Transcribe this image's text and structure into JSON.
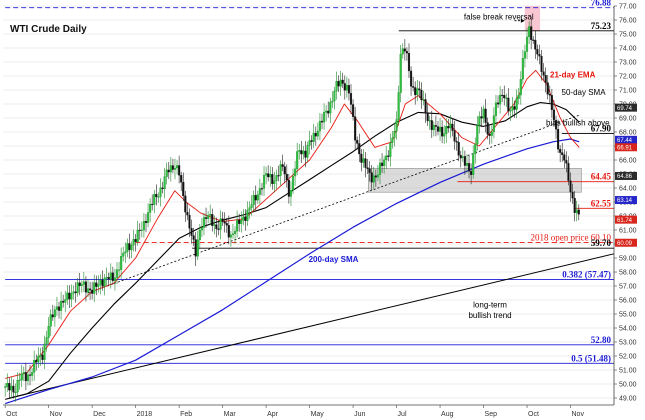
{
  "chart_data": {
    "type": "candlestick",
    "title": "WTI Crude Daily",
    "ylim": [
      48.5,
      77.0
    ],
    "y_ticks": [
      49.0,
      50.0,
      51.0,
      52.0,
      53.0,
      54.0,
      55.0,
      56.0,
      57.0,
      58.0,
      59.0,
      60.0,
      61.0,
      62.0,
      63.0,
      64.0,
      65.0,
      66.0,
      67.0,
      68.0,
      69.0,
      70.0,
      71.0,
      72.0,
      73.0,
      74.0,
      75.0,
      76.0,
      77.0
    ],
    "x_ticks": [
      {
        "label": "Oct",
        "x": 0.0
      },
      {
        "label": "Nov",
        "x": 1.0
      },
      {
        "label": "Dec",
        "x": 2.0
      },
      {
        "label": "2018",
        "x": 3.0
      },
      {
        "label": "Feb",
        "x": 4.0
      },
      {
        "label": "Mar",
        "x": 5.0
      },
      {
        "label": "Apr",
        "x": 6.0
      },
      {
        "label": "May",
        "x": 7.0
      },
      {
        "label": "Jun",
        "x": 8.0
      },
      {
        "label": "Jul",
        "x": 9.0
      },
      {
        "label": "Aug",
        "x": 10.0
      },
      {
        "label": "Sep",
        "x": 11.0
      },
      {
        "label": "Oct",
        "x": 12.0
      },
      {
        "label": "Nov",
        "x": 13.0
      }
    ],
    "x_range": [
      -0.05,
      14.0
    ],
    "close_path": [
      [
        0.0,
        49.8
      ],
      [
        0.2,
        49.5
      ],
      [
        0.35,
        50.6
      ],
      [
        0.5,
        50.4
      ],
      [
        0.7,
        51.6
      ],
      [
        0.85,
        52.0
      ],
      [
        1.0,
        54.2
      ],
      [
        1.2,
        55.6
      ],
      [
        1.4,
        56.0
      ],
      [
        1.6,
        56.8
      ],
      [
        1.8,
        57.1
      ],
      [
        2.0,
        56.6
      ],
      [
        2.2,
        57.4
      ],
      [
        2.5,
        57.6
      ],
      [
        2.8,
        59.8
      ],
      [
        3.0,
        60.3
      ],
      [
        3.2,
        61.6
      ],
      [
        3.45,
        63.4
      ],
      [
        3.6,
        64.0
      ],
      [
        3.75,
        65.3
      ],
      [
        3.9,
        65.7
      ],
      [
        4.0,
        65.0
      ],
      [
        4.1,
        63.2
      ],
      [
        4.25,
        61.2
      ],
      [
        4.38,
        59.2
      ],
      [
        4.5,
        61.5
      ],
      [
        4.65,
        62.0
      ],
      [
        4.85,
        61.2
      ],
      [
        5.0,
        61.6
      ],
      [
        5.2,
        60.6
      ],
      [
        5.4,
        61.6
      ],
      [
        5.6,
        62.4
      ],
      [
        5.8,
        63.6
      ],
      [
        6.0,
        64.9
      ],
      [
        6.2,
        64.6
      ],
      [
        6.4,
        65.6
      ],
      [
        6.55,
        63.4
      ],
      [
        6.75,
        66.9
      ],
      [
        6.9,
        66.4
      ],
      [
        7.05,
        67.5
      ],
      [
        7.25,
        68.6
      ],
      [
        7.45,
        69.8
      ],
      [
        7.6,
        71.2
      ],
      [
        7.75,
        71.6
      ],
      [
        7.9,
        71.0
      ],
      [
        8.05,
        67.6
      ],
      [
        8.2,
        66.0
      ],
      [
        8.4,
        64.8
      ],
      [
        8.55,
        64.9
      ],
      [
        8.75,
        66.2
      ],
      [
        8.85,
        67.0
      ],
      [
        9.0,
        68.5
      ],
      [
        9.1,
        73.9
      ],
      [
        9.2,
        74.1
      ],
      [
        9.35,
        70.9
      ],
      [
        9.5,
        71.2
      ],
      [
        9.7,
        69.0
      ],
      [
        9.9,
        68.2
      ],
      [
        10.05,
        67.9
      ],
      [
        10.2,
        68.6
      ],
      [
        10.45,
        66.5
      ],
      [
        10.7,
        64.9
      ],
      [
        10.85,
        68.4
      ],
      [
        11.0,
        69.4
      ],
      [
        11.15,
        67.5
      ],
      [
        11.3,
        70.0
      ],
      [
        11.45,
        71.0
      ],
      [
        11.6,
        69.2
      ],
      [
        11.8,
        70.6
      ],
      [
        11.95,
        73.8
      ],
      [
        12.05,
        75.6
      ],
      [
        12.15,
        74.3
      ],
      [
        12.3,
        72.9
      ],
      [
        12.45,
        71.4
      ],
      [
        12.6,
        69.1
      ],
      [
        12.75,
        66.6
      ],
      [
        12.85,
        66.2
      ],
      [
        13.0,
        63.8
      ],
      [
        13.1,
        62.6
      ],
      [
        13.2,
        61.9
      ]
    ],
    "ema21": [
      [
        0.0,
        50.4
      ],
      [
        0.5,
        50.8
      ],
      [
        1.0,
        52.8
      ],
      [
        1.5,
        55.2
      ],
      [
        2.0,
        56.6
      ],
      [
        2.5,
        57.2
      ],
      [
        3.0,
        59.0
      ],
      [
        3.5,
        61.8
      ],
      [
        3.9,
        63.8
      ],
      [
        4.2,
        62.9
      ],
      [
        4.5,
        62.2
      ],
      [
        5.0,
        61.6
      ],
      [
        5.5,
        61.8
      ],
      [
        6.0,
        63.2
      ],
      [
        6.5,
        64.6
      ],
      [
        7.0,
        66.0
      ],
      [
        7.5,
        68.3
      ],
      [
        7.8,
        70.0
      ],
      [
        8.1,
        68.8
      ],
      [
        8.5,
        66.9
      ],
      [
        8.9,
        67.3
      ],
      [
        9.2,
        70.0
      ],
      [
        9.5,
        70.6
      ],
      [
        10.0,
        69.3
      ],
      [
        10.5,
        67.6
      ],
      [
        10.9,
        67.0
      ],
      [
        11.3,
        68.5
      ],
      [
        11.7,
        70.0
      ],
      [
        12.0,
        71.8
      ],
      [
        12.2,
        72.4
      ],
      [
        12.45,
        71.4
      ],
      [
        12.75,
        69.1
      ],
      [
        13.0,
        67.6
      ],
      [
        13.2,
        66.9
      ]
    ],
    "sma50": [
      [
        0.0,
        48.9
      ],
      [
        0.5,
        49.3
      ],
      [
        1.0,
        50.2
      ],
      [
        1.5,
        52.2
      ],
      [
        2.0,
        54.0
      ],
      [
        2.5,
        55.7
      ],
      [
        3.0,
        57.2
      ],
      [
        3.5,
        58.8
      ],
      [
        4.0,
        60.4
      ],
      [
        4.5,
        61.2
      ],
      [
        5.0,
        61.7
      ],
      [
        5.5,
        62.1
      ],
      [
        6.0,
        62.6
      ],
      [
        6.5,
        63.6
      ],
      [
        7.0,
        64.6
      ],
      [
        7.5,
        65.6
      ],
      [
        8.0,
        66.6
      ],
      [
        8.5,
        67.7
      ],
      [
        9.0,
        68.7
      ],
      [
        9.5,
        69.4
      ],
      [
        10.0,
        69.3
      ],
      [
        10.5,
        68.7
      ],
      [
        11.0,
        68.4
      ],
      [
        11.5,
        68.8
      ],
      [
        12.0,
        69.8
      ],
      [
        12.3,
        70.1
      ],
      [
        12.6,
        70.0
      ],
      [
        12.9,
        69.6
      ],
      [
        13.2,
        68.7
      ]
    ],
    "sma200": [
      [
        0.0,
        48.6
      ],
      [
        1.0,
        49.6
      ],
      [
        2.0,
        50.5
      ],
      [
        3.0,
        51.7
      ],
      [
        4.0,
        53.5
      ],
      [
        5.0,
        55.3
      ],
      [
        6.0,
        57.3
      ],
      [
        7.0,
        59.3
      ],
      [
        8.0,
        61.2
      ],
      [
        9.0,
        62.9
      ],
      [
        10.0,
        64.4
      ],
      [
        11.0,
        65.7
      ],
      [
        12.0,
        66.8
      ],
      [
        12.6,
        67.3
      ],
      [
        13.0,
        67.5
      ],
      [
        13.2,
        67.3
      ]
    ],
    "bands": [
      {
        "y1": 63.7,
        "y2": 65.4,
        "x1": 8.35,
        "x2": 13.25,
        "color": "#bdbdbd"
      }
    ],
    "false_break_zone": {
      "x1": 11.95,
      "x2": 12.3,
      "y1": 75.2,
      "y2": 77.0
    },
    "levels": [
      {
        "value": 76.88,
        "label": "76.88",
        "color": "#1a1ad6",
        "style": "dashed",
        "x1": 0.0,
        "x2": 14.0
      },
      {
        "value": 75.23,
        "label": "75.23",
        "color": "#000000",
        "style": "solid",
        "x1": 9.05,
        "x2": 14.0
      },
      {
        "value": 67.9,
        "label": "67.90",
        "color": "#000000",
        "style": "solid",
        "x1": 12.8,
        "x2": 14.0
      },
      {
        "value": 64.45,
        "label": "64.45",
        "color": "#e8170f",
        "style": "solid",
        "x1": 10.4,
        "x2": 14.0
      },
      {
        "value": 62.55,
        "label": "62.55",
        "color": "#e8170f",
        "style": "solid",
        "x1": 13.1,
        "x2": 14.0
      },
      {
        "value": 60.1,
        "label": "2018 open price 60.10",
        "color": "#e8170f",
        "style": "dashed",
        "x1": 3.0,
        "x2": 14.0
      },
      {
        "value": 59.7,
        "label": "59.70",
        "color": "#000000",
        "style": "solid",
        "x1": 4.3,
        "x2": 14.0
      },
      {
        "value": 57.47,
        "label": "0.382 (57.47)",
        "color": "#1a1ad6",
        "style": "solid",
        "x1": 0.0,
        "x2": 14.0
      },
      {
        "value": 52.8,
        "label": "52.80",
        "color": "#1a1ad6",
        "style": "solid",
        "x1": 0.0,
        "x2": 14.0
      },
      {
        "value": 51.48,
        "label": "0.5 (51.48)",
        "color": "#1a1ad6",
        "style": "solid",
        "x1": 0.0,
        "x2": 14.0
      }
    ],
    "trendlines": [
      {
        "x1": 0.1,
        "y1": 49.0,
        "x2": 14.0,
        "y2": 59.3,
        "color": "#000000",
        "style": "solid"
      },
      {
        "x1": 1.9,
        "y1": 56.5,
        "x2": 13.2,
        "y2": 69.2,
        "color": "#000000",
        "style": "dotted"
      }
    ],
    "annotations": [
      {
        "text": "false break reversal",
        "x": 11.35,
        "y": 76.05,
        "color": "#000000",
        "anchor": "middle",
        "weight": "normal"
      },
      {
        "text": "21-day EMA",
        "x": 13.05,
        "y": 71.9,
        "color": "#e8170f",
        "anchor": "middle",
        "weight": "bold"
      },
      {
        "text": "50-day SMA",
        "x": 13.3,
        "y": 70.65,
        "color": "#000000",
        "anchor": "middle",
        "weight": "normal"
      },
      {
        "text": "bias bullish above",
        "x": 13.9,
        "y": 68.45,
        "color": "#000000",
        "anchor": "end",
        "weight": "normal"
      },
      {
        "text": "200-day SMA",
        "x": 7.55,
        "y": 58.7,
        "color": "#1a1ad6",
        "anchor": "middle",
        "weight": "bold"
      },
      {
        "text": "long-term",
        "x": 11.15,
        "y": 55.45,
        "color": "#000000",
        "anchor": "middle",
        "weight": "normal"
      },
      {
        "text": "bullish trend",
        "x": 11.15,
        "y": 54.7,
        "color": "#000000",
        "anchor": "middle",
        "weight": "normal"
      }
    ],
    "right_tags": [
      {
        "text": "69.74",
        "y": 69.74,
        "color": "#2a2a2a"
      },
      {
        "text": "67.44",
        "y": 67.44,
        "color": "#2626c9"
      },
      {
        "text": "66.91",
        "y": 66.91,
        "color": "#d8261d"
      },
      {
        "text": "64.86",
        "y": 64.86,
        "color": "#2a2a2a"
      },
      {
        "text": "63.14",
        "y": 63.14,
        "color": "#2626c9"
      },
      {
        "text": "61.74",
        "y": 61.74,
        "color": "#d8261d"
      },
      {
        "text": "60.09",
        "y": 60.09,
        "color": "#d8261d"
      }
    ]
  }
}
